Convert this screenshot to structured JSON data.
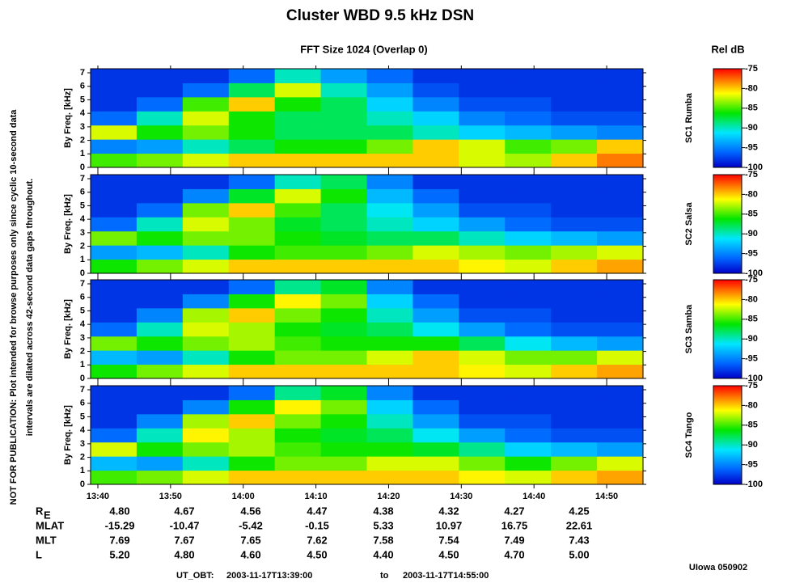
{
  "title": "Cluster WBD 9.5 kHz DSN",
  "subtitle": "FFT Size 1024 (Overlap     0)",
  "colorbar_title": "Rel dB",
  "side_note": [
    "NOT FOR PUBLICATION:  Plot intended for browse purposes only since cyclic 10-second data",
    "intervals are dilated across 42-second data gaps throughout."
  ],
  "footer": {
    "label": "UT_OBT:",
    "start": "2003-11-17T13:39:00",
    "sep": "to",
    "end": "2003-11-17T14:55:00"
  },
  "credit": "UIowa 050902",
  "ephemeris": {
    "rows": [
      {
        "label": "R",
        "label_sub": "E",
        "values": [
          "4.80",
          "4.67",
          "4.56",
          "4.47",
          "4.38",
          "4.32",
          "4.27",
          "4.25"
        ]
      },
      {
        "label": "MLAT",
        "values": [
          "-15.29",
          "-10.47",
          "-5.42",
          "-0.15",
          "5.33",
          "10.97",
          "16.75",
          "22.61"
        ]
      },
      {
        "label": "MLT",
        "values": [
          "7.69",
          "7.67",
          "7.65",
          "7.62",
          "7.58",
          "7.54",
          "7.49",
          "7.43"
        ]
      },
      {
        "label": "L",
        "values": [
          "5.20",
          "4.80",
          "4.60",
          "4.50",
          "4.40",
          "4.50",
          "4.70",
          "5.00"
        ]
      }
    ]
  },
  "chart_data": [
    {
      "type": "heatmap",
      "panel_label": "SC1 Rumba",
      "ylabel": "By Freq. [kHz]",
      "xlim": [
        "2003-11-17T13:39:00",
        "2003-11-17T14:55:00"
      ],
      "ylim": [
        0,
        7.3
      ],
      "yticks": [
        0,
        1,
        2,
        3,
        4,
        5,
        6,
        7
      ],
      "zlim": [
        -100,
        -75
      ],
      "zticks": [
        -75,
        -80,
        -85,
        -90,
        -95,
        -100
      ],
      "values": [
        [
          -85,
          -84,
          -82,
          -80,
          -80,
          -80,
          -80,
          -80,
          -82,
          -83,
          -80,
          -78
        ],
        [
          -95,
          -94,
          -90,
          -88,
          -86,
          -86,
          -84,
          -80,
          -82,
          -85,
          -84,
          -80
        ],
        [
          -82,
          -86,
          -84,
          -86,
          -88,
          -88,
          -88,
          -90,
          -92,
          -93,
          -94,
          -95
        ],
        [
          -96,
          -90,
          -82,
          -86,
          -88,
          -88,
          -90,
          -92,
          -95,
          -96,
          -97,
          -97
        ],
        [
          -98,
          -96,
          -85,
          -80,
          -86,
          -88,
          -92,
          -95,
          -97,
          -97,
          -98,
          -98
        ],
        [
          -98,
          -98,
          -96,
          -88,
          -82,
          -90,
          -94,
          -97,
          -98,
          -98,
          -98,
          -98
        ],
        [
          -98,
          -98,
          -98,
          -96,
          -90,
          -94,
          -96,
          -98,
          -98,
          -98,
          -98,
          -98
        ]
      ]
    },
    {
      "type": "heatmap",
      "panel_label": "SC2 Salsa",
      "ylabel": "By Freq. [kHz]",
      "xlim": [
        "2003-11-17T13:39:00",
        "2003-11-17T14:55:00"
      ],
      "ylim": [
        0,
        7.3
      ],
      "yticks": [
        0,
        1,
        2,
        3,
        4,
        5,
        6,
        7
      ],
      "zlim": [
        -100,
        -75
      ],
      "zticks": [
        -75,
        -80,
        -85,
        -90,
        -95,
        -100
      ],
      "values": [
        [
          -86,
          -84,
          -82,
          -80,
          -80,
          -80,
          -80,
          -80,
          -81,
          -82,
          -80,
          -79
        ],
        [
          -94,
          -93,
          -90,
          -86,
          -85,
          -85,
          -84,
          -82,
          -83,
          -84,
          -83,
          -82
        ],
        [
          -84,
          -86,
          -84,
          -84,
          -86,
          -87,
          -88,
          -88,
          -90,
          -92,
          -93,
          -94
        ],
        [
          -96,
          -90,
          -82,
          -84,
          -87,
          -88,
          -90,
          -92,
          -94,
          -96,
          -97,
          -97
        ],
        [
          -98,
          -96,
          -84,
          -80,
          -85,
          -88,
          -91,
          -94,
          -97,
          -97,
          -98,
          -98
        ],
        [
          -98,
          -98,
          -95,
          -87,
          -82,
          -86,
          -93,
          -96,
          -98,
          -98,
          -98,
          -98
        ],
        [
          -98,
          -98,
          -98,
          -96,
          -90,
          -88,
          -95,
          -98,
          -98,
          -98,
          -98,
          -98
        ]
      ]
    },
    {
      "type": "heatmap",
      "panel_label": "SC3 Samba",
      "ylabel": "By Freq. [kHz]",
      "xlim": [
        "2003-11-17T13:39:00",
        "2003-11-17T14:55:00"
      ],
      "ylim": [
        0,
        7.3
      ],
      "yticks": [
        0,
        1,
        2,
        3,
        4,
        5,
        6,
        7
      ],
      "zlim": [
        -100,
        -75
      ],
      "zticks": [
        -75,
        -80,
        -85,
        -90,
        -95,
        -100
      ],
      "values": [
        [
          -86,
          -84,
          -82,
          -80,
          -80,
          -80,
          -80,
          -80,
          -81,
          -82,
          -80,
          -79
        ],
        [
          -93,
          -94,
          -90,
          -86,
          -84,
          -84,
          -82,
          -80,
          -82,
          -84,
          -84,
          -82
        ],
        [
          -84,
          -86,
          -84,
          -83,
          -85,
          -86,
          -86,
          -86,
          -88,
          -91,
          -93,
          -94
        ],
        [
          -96,
          -90,
          -82,
          -83,
          -86,
          -87,
          -88,
          -91,
          -94,
          -96,
          -97,
          -97
        ],
        [
          -98,
          -95,
          -83,
          -80,
          -84,
          -86,
          -90,
          -94,
          -97,
          -97,
          -98,
          -98
        ],
        [
          -98,
          -98,
          -95,
          -86,
          -81,
          -84,
          -92,
          -96,
          -98,
          -98,
          -98,
          -98
        ],
        [
          -98,
          -98,
          -98,
          -96,
          -89,
          -87,
          -95,
          -98,
          -98,
          -98,
          -98,
          -98
        ]
      ]
    },
    {
      "type": "heatmap",
      "panel_label": "SC4 Tango",
      "ylabel": "By Freq. [kHz]",
      "xlim": [
        "2003-11-17T13:39:00",
        "2003-11-17T14:55:00"
      ],
      "ylim": [
        0,
        7.3
      ],
      "yticks": [
        0,
        1,
        2,
        3,
        4,
        5,
        6,
        7
      ],
      "zlim": [
        -100,
        -75
      ],
      "zticks": [
        -75,
        -80,
        -85,
        -90,
        -95,
        -100
      ],
      "xticks": [
        "13:40",
        "13:50",
        "14:00",
        "14:10",
        "14:20",
        "14:30",
        "14:40",
        "14:50"
      ],
      "values": [
        [
          -85,
          -84,
          -82,
          -80,
          -80,
          -80,
          -80,
          -80,
          -81,
          -82,
          -80,
          -79
        ],
        [
          -93,
          -94,
          -90,
          -86,
          -84,
          -84,
          -82,
          -82,
          -84,
          -86,
          -84,
          -82
        ],
        [
          -82,
          -86,
          -84,
          -83,
          -85,
          -86,
          -86,
          -87,
          -89,
          -92,
          -93,
          -94
        ],
        [
          -96,
          -90,
          -81,
          -83,
          -86,
          -87,
          -88,
          -91,
          -94,
          -96,
          -97,
          -97
        ],
        [
          -98,
          -95,
          -83,
          -80,
          -84,
          -86,
          -90,
          -94,
          -97,
          -97,
          -98,
          -98
        ],
        [
          -98,
          -98,
          -95,
          -86,
          -81,
          -84,
          -92,
          -96,
          -98,
          -98,
          -98,
          -98
        ],
        [
          -98,
          -98,
          -98,
          -96,
          -89,
          -87,
          -95,
          -98,
          -98,
          -98,
          -98,
          -98
        ]
      ]
    }
  ]
}
